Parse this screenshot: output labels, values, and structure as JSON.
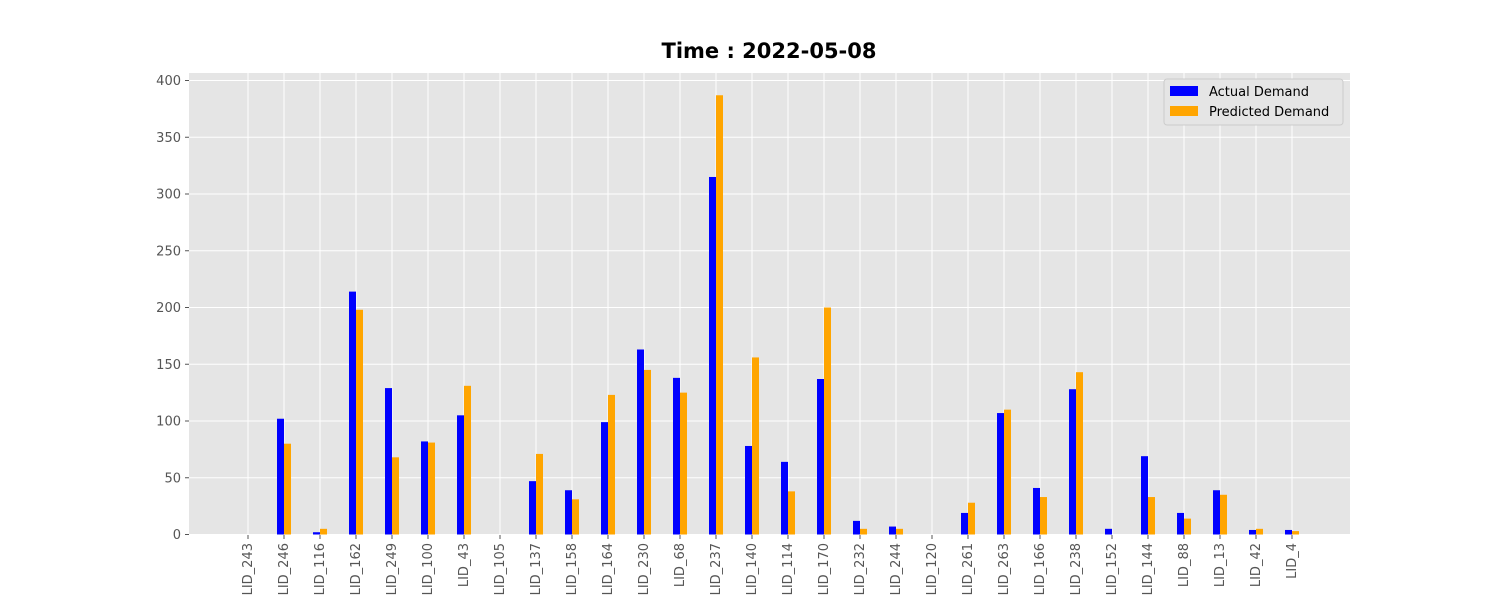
{
  "chart_data": {
    "type": "bar",
    "title": "Time : 2022-05-08",
    "xlabel": "",
    "ylabel": "",
    "ylim": [
      0,
      400
    ],
    "yticks": [
      0,
      50,
      100,
      150,
      200,
      250,
      300,
      350,
      400
    ],
    "grid": true,
    "legend_position": "top-right",
    "categories": [
      "LID_243",
      "LID_246",
      "LID_116",
      "LID_162",
      "LID_249",
      "LID_100",
      "LID_43",
      "LID_105",
      "LID_137",
      "LID_158",
      "LID_164",
      "LID_230",
      "LID_68",
      "LID_237",
      "LID_140",
      "LID_114",
      "LID_170",
      "LID_232",
      "LID_244",
      "LID_120",
      "LID_261",
      "LID_263",
      "LID_166",
      "LID_238",
      "LID_152",
      "LID_144",
      "LID_88",
      "LID_13",
      "LID_42",
      "LID_4"
    ],
    "series": [
      {
        "name": "Actual Demand",
        "color": "#0000ff",
        "values": [
          0,
          102,
          2,
          214,
          129,
          82,
          105,
          0,
          47,
          39,
          99,
          163,
          138,
          315,
          78,
          64,
          137,
          12,
          7,
          0,
          19,
          107,
          41,
          128,
          5,
          69,
          19,
          39,
          4,
          4
        ]
      },
      {
        "name": "Predicted Demand",
        "color": "#ffa500",
        "values": [
          0,
          80,
          5,
          198,
          68,
          81,
          131,
          0,
          71,
          31,
          123,
          145,
          125,
          387,
          156,
          38,
          200,
          5,
          5,
          0,
          28,
          110,
          33,
          143,
          0,
          33,
          14,
          35,
          5,
          3
        ]
      }
    ]
  }
}
